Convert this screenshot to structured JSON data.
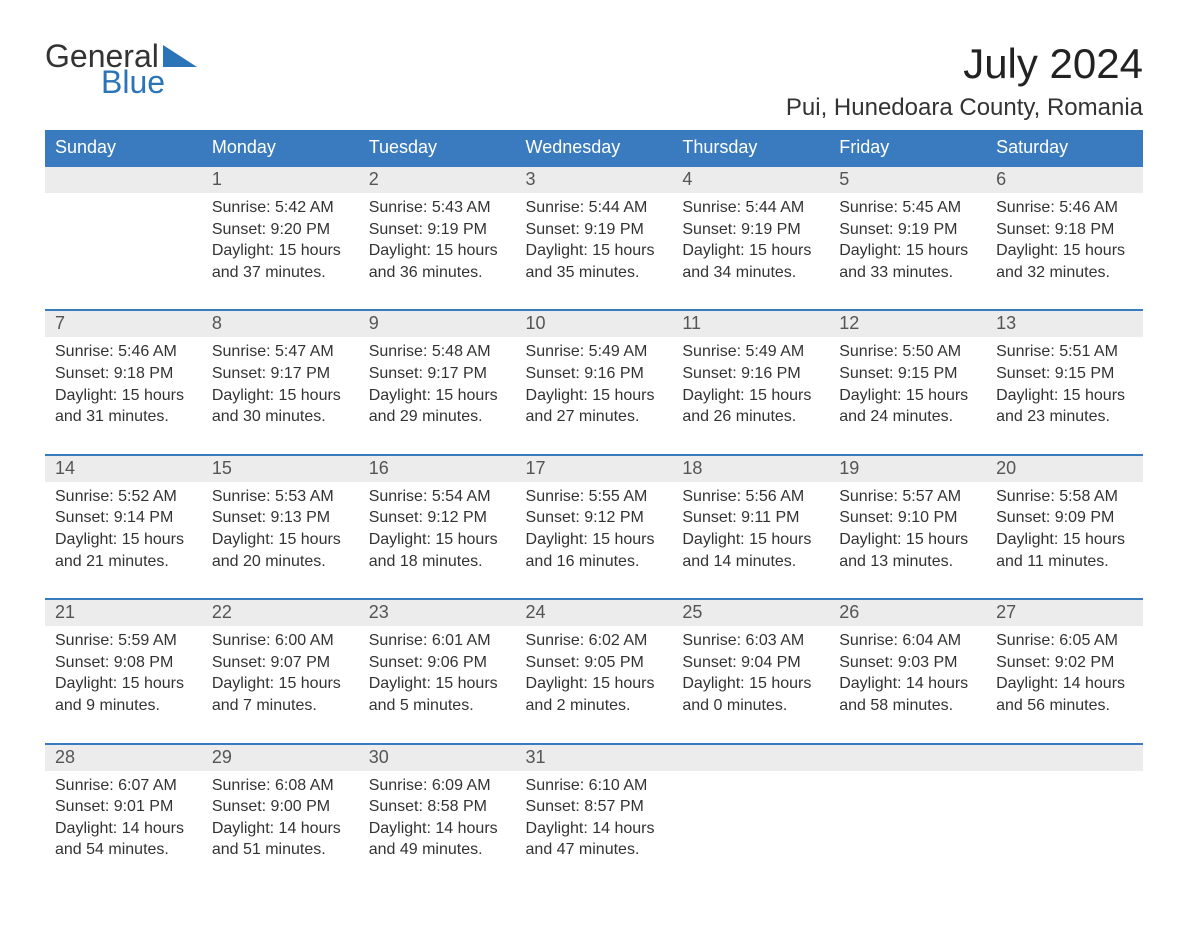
{
  "logo": {
    "word1": "General",
    "word2": "Blue",
    "color_text": "#333333",
    "color_blue": "#2b74b8"
  },
  "title": "July 2024",
  "location": "Pui, Hunedoara County, Romania",
  "colors": {
    "header_bg": "#3a7bbf",
    "header_text": "#ffffff",
    "daynum_bg": "#ececec",
    "daynum_text": "#555555",
    "body_text": "#333333",
    "row_border": "#3a7bbf",
    "page_bg": "#ffffff"
  },
  "typography": {
    "title_fontsize": 42,
    "location_fontsize": 24,
    "header_fontsize": 18,
    "daynum_fontsize": 18,
    "cell_fontsize": 16,
    "font_family": "Arial"
  },
  "weekdays": [
    "Sunday",
    "Monday",
    "Tuesday",
    "Wednesday",
    "Thursday",
    "Friday",
    "Saturday"
  ],
  "weeks": [
    [
      null,
      {
        "n": "1",
        "sr": "Sunrise: 5:42 AM",
        "ss": "Sunset: 9:20 PM",
        "d1": "Daylight: 15 hours",
        "d2": "and 37 minutes."
      },
      {
        "n": "2",
        "sr": "Sunrise: 5:43 AM",
        "ss": "Sunset: 9:19 PM",
        "d1": "Daylight: 15 hours",
        "d2": "and 36 minutes."
      },
      {
        "n": "3",
        "sr": "Sunrise: 5:44 AM",
        "ss": "Sunset: 9:19 PM",
        "d1": "Daylight: 15 hours",
        "d2": "and 35 minutes."
      },
      {
        "n": "4",
        "sr": "Sunrise: 5:44 AM",
        "ss": "Sunset: 9:19 PM",
        "d1": "Daylight: 15 hours",
        "d2": "and 34 minutes."
      },
      {
        "n": "5",
        "sr": "Sunrise: 5:45 AM",
        "ss": "Sunset: 9:19 PM",
        "d1": "Daylight: 15 hours",
        "d2": "and 33 minutes."
      },
      {
        "n": "6",
        "sr": "Sunrise: 5:46 AM",
        "ss": "Sunset: 9:18 PM",
        "d1": "Daylight: 15 hours",
        "d2": "and 32 minutes."
      }
    ],
    [
      {
        "n": "7",
        "sr": "Sunrise: 5:46 AM",
        "ss": "Sunset: 9:18 PM",
        "d1": "Daylight: 15 hours",
        "d2": "and 31 minutes."
      },
      {
        "n": "8",
        "sr": "Sunrise: 5:47 AM",
        "ss": "Sunset: 9:17 PM",
        "d1": "Daylight: 15 hours",
        "d2": "and 30 minutes."
      },
      {
        "n": "9",
        "sr": "Sunrise: 5:48 AM",
        "ss": "Sunset: 9:17 PM",
        "d1": "Daylight: 15 hours",
        "d2": "and 29 minutes."
      },
      {
        "n": "10",
        "sr": "Sunrise: 5:49 AM",
        "ss": "Sunset: 9:16 PM",
        "d1": "Daylight: 15 hours",
        "d2": "and 27 minutes."
      },
      {
        "n": "11",
        "sr": "Sunrise: 5:49 AM",
        "ss": "Sunset: 9:16 PM",
        "d1": "Daylight: 15 hours",
        "d2": "and 26 minutes."
      },
      {
        "n": "12",
        "sr": "Sunrise: 5:50 AM",
        "ss": "Sunset: 9:15 PM",
        "d1": "Daylight: 15 hours",
        "d2": "and 24 minutes."
      },
      {
        "n": "13",
        "sr": "Sunrise: 5:51 AM",
        "ss": "Sunset: 9:15 PM",
        "d1": "Daylight: 15 hours",
        "d2": "and 23 minutes."
      }
    ],
    [
      {
        "n": "14",
        "sr": "Sunrise: 5:52 AM",
        "ss": "Sunset: 9:14 PM",
        "d1": "Daylight: 15 hours",
        "d2": "and 21 minutes."
      },
      {
        "n": "15",
        "sr": "Sunrise: 5:53 AM",
        "ss": "Sunset: 9:13 PM",
        "d1": "Daylight: 15 hours",
        "d2": "and 20 minutes."
      },
      {
        "n": "16",
        "sr": "Sunrise: 5:54 AM",
        "ss": "Sunset: 9:12 PM",
        "d1": "Daylight: 15 hours",
        "d2": "and 18 minutes."
      },
      {
        "n": "17",
        "sr": "Sunrise: 5:55 AM",
        "ss": "Sunset: 9:12 PM",
        "d1": "Daylight: 15 hours",
        "d2": "and 16 minutes."
      },
      {
        "n": "18",
        "sr": "Sunrise: 5:56 AM",
        "ss": "Sunset: 9:11 PM",
        "d1": "Daylight: 15 hours",
        "d2": "and 14 minutes."
      },
      {
        "n": "19",
        "sr": "Sunrise: 5:57 AM",
        "ss": "Sunset: 9:10 PM",
        "d1": "Daylight: 15 hours",
        "d2": "and 13 minutes."
      },
      {
        "n": "20",
        "sr": "Sunrise: 5:58 AM",
        "ss": "Sunset: 9:09 PM",
        "d1": "Daylight: 15 hours",
        "d2": "and 11 minutes."
      }
    ],
    [
      {
        "n": "21",
        "sr": "Sunrise: 5:59 AM",
        "ss": "Sunset: 9:08 PM",
        "d1": "Daylight: 15 hours",
        "d2": "and 9 minutes."
      },
      {
        "n": "22",
        "sr": "Sunrise: 6:00 AM",
        "ss": "Sunset: 9:07 PM",
        "d1": "Daylight: 15 hours",
        "d2": "and 7 minutes."
      },
      {
        "n": "23",
        "sr": "Sunrise: 6:01 AM",
        "ss": "Sunset: 9:06 PM",
        "d1": "Daylight: 15 hours",
        "d2": "and 5 minutes."
      },
      {
        "n": "24",
        "sr": "Sunrise: 6:02 AM",
        "ss": "Sunset: 9:05 PM",
        "d1": "Daylight: 15 hours",
        "d2": "and 2 minutes."
      },
      {
        "n": "25",
        "sr": "Sunrise: 6:03 AM",
        "ss": "Sunset: 9:04 PM",
        "d1": "Daylight: 15 hours",
        "d2": "and 0 minutes."
      },
      {
        "n": "26",
        "sr": "Sunrise: 6:04 AM",
        "ss": "Sunset: 9:03 PM",
        "d1": "Daylight: 14 hours",
        "d2": "and 58 minutes."
      },
      {
        "n": "27",
        "sr": "Sunrise: 6:05 AM",
        "ss": "Sunset: 9:02 PM",
        "d1": "Daylight: 14 hours",
        "d2": "and 56 minutes."
      }
    ],
    [
      {
        "n": "28",
        "sr": "Sunrise: 6:07 AM",
        "ss": "Sunset: 9:01 PM",
        "d1": "Daylight: 14 hours",
        "d2": "and 54 minutes."
      },
      {
        "n": "29",
        "sr": "Sunrise: 6:08 AM",
        "ss": "Sunset: 9:00 PM",
        "d1": "Daylight: 14 hours",
        "d2": "and 51 minutes."
      },
      {
        "n": "30",
        "sr": "Sunrise: 6:09 AM",
        "ss": "Sunset: 8:58 PM",
        "d1": "Daylight: 14 hours",
        "d2": "and 49 minutes."
      },
      {
        "n": "31",
        "sr": "Sunrise: 6:10 AM",
        "ss": "Sunset: 8:57 PM",
        "d1": "Daylight: 14 hours",
        "d2": "and 47 minutes."
      },
      null,
      null,
      null
    ]
  ]
}
